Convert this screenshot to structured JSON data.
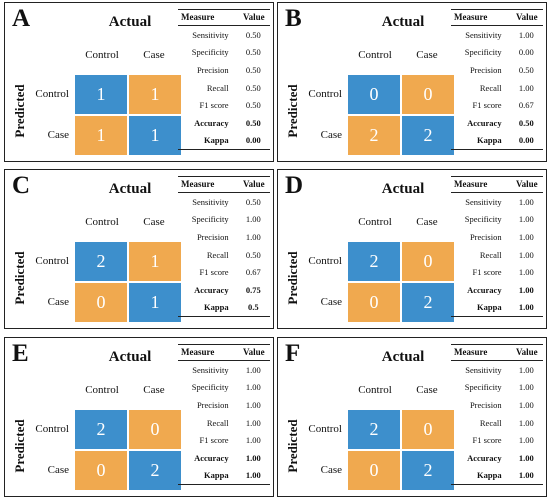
{
  "header": {
    "measure": "Measure",
    "value": "Value"
  },
  "axis": {
    "actual": "Actual",
    "predicted": "Predicted"
  },
  "labels": {
    "control": "Control",
    "case": "Case"
  },
  "colors": {
    "correct": "#3d8fcc",
    "incorrect": "#f0a94f"
  },
  "panels": [
    {
      "letter": "A",
      "matrix": [
        [
          "1",
          "1"
        ],
        [
          "1",
          "1"
        ]
      ],
      "metrics": [
        {
          "measure": "Sensitivity",
          "value": "0.50"
        },
        {
          "measure": "Specificity",
          "value": "0.50"
        },
        {
          "measure": "Precision",
          "value": "0.50"
        },
        {
          "measure": "Recall",
          "value": "0.50"
        },
        {
          "measure": "F1 score",
          "value": "0.50"
        },
        {
          "measure": "Accuracy",
          "value": "0.50"
        },
        {
          "measure": "Kappa",
          "value": "0.00"
        }
      ]
    },
    {
      "letter": "B",
      "matrix": [
        [
          "0",
          "0"
        ],
        [
          "2",
          "2"
        ]
      ],
      "metrics": [
        {
          "measure": "Sensitivity",
          "value": "1.00"
        },
        {
          "measure": "Specificity",
          "value": "0.00"
        },
        {
          "measure": "Precision",
          "value": "0.50"
        },
        {
          "measure": "Recall",
          "value": "1.00"
        },
        {
          "measure": "F1 score",
          "value": "0.67"
        },
        {
          "measure": "Accuracy",
          "value": "0.50"
        },
        {
          "measure": "Kappa",
          "value": "0.00"
        }
      ]
    },
    {
      "letter": "C",
      "matrix": [
        [
          "2",
          "1"
        ],
        [
          "0",
          "1"
        ]
      ],
      "metrics": [
        {
          "measure": "Sensitivity",
          "value": "0.50"
        },
        {
          "measure": "Specificity",
          "value": "1.00"
        },
        {
          "measure": "Precision",
          "value": "1.00"
        },
        {
          "measure": "Recall",
          "value": "0.50"
        },
        {
          "measure": "F1 score",
          "value": "0.67"
        },
        {
          "measure": "Accuracy",
          "value": "0.75"
        },
        {
          "measure": "Kappa",
          "value": "0.5"
        }
      ]
    },
    {
      "letter": "D",
      "matrix": [
        [
          "2",
          "0"
        ],
        [
          "0",
          "2"
        ]
      ],
      "metrics": [
        {
          "measure": "Sensitivity",
          "value": "1.00"
        },
        {
          "measure": "Specificity",
          "value": "1.00"
        },
        {
          "measure": "Precision",
          "value": "1.00"
        },
        {
          "measure": "Recall",
          "value": "1.00"
        },
        {
          "measure": "F1 score",
          "value": "1.00"
        },
        {
          "measure": "Accuracy",
          "value": "1.00"
        },
        {
          "measure": "Kappa",
          "value": "1.00"
        }
      ]
    },
    {
      "letter": "E",
      "matrix": [
        [
          "2",
          "0"
        ],
        [
          "0",
          "2"
        ]
      ],
      "metrics": [
        {
          "measure": "Sensitivity",
          "value": "1.00"
        },
        {
          "measure": "Specificity",
          "value": "1.00"
        },
        {
          "measure": "Precision",
          "value": "1.00"
        },
        {
          "measure": "Recall",
          "value": "1.00"
        },
        {
          "measure": "F1 score",
          "value": "1.00"
        },
        {
          "measure": "Accuracy",
          "value": "1.00"
        },
        {
          "measure": "Kappa",
          "value": "1.00"
        }
      ]
    },
    {
      "letter": "F",
      "matrix": [
        [
          "2",
          "0"
        ],
        [
          "0",
          "2"
        ]
      ],
      "metrics": [
        {
          "measure": "Sensitivity",
          "value": "1.00"
        },
        {
          "measure": "Specificity",
          "value": "1.00"
        },
        {
          "measure": "Precision",
          "value": "1.00"
        },
        {
          "measure": "Recall",
          "value": "1.00"
        },
        {
          "measure": "F1 score",
          "value": "1.00"
        },
        {
          "measure": "Accuracy",
          "value": "1.00"
        },
        {
          "measure": "Kappa",
          "value": "1.00"
        }
      ]
    }
  ]
}
